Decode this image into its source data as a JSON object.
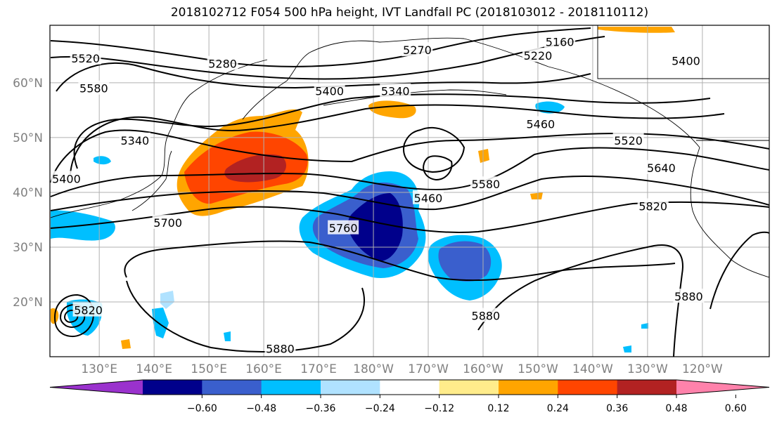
{
  "title": "2018102712 F054 500 hPa height, IVT Landfall PC (2018103012 - 2018110112)",
  "map": {
    "lon_ticks": [
      {
        "lon": 130,
        "label": "130°E"
      },
      {
        "lon": 140,
        "label": "140°E"
      },
      {
        "lon": 150,
        "label": "150°E"
      },
      {
        "lon": 160,
        "label": "160°E"
      },
      {
        "lon": 170,
        "label": "170°E"
      },
      {
        "lon": 180,
        "label": "180°W"
      },
      {
        "lon": 190,
        "label": "170°W"
      },
      {
        "lon": 200,
        "label": "160°W"
      },
      {
        "lon": 210,
        "label": "150°W"
      },
      {
        "lon": 220,
        "label": "140°W"
      },
      {
        "lon": 230,
        "label": "130°W"
      },
      {
        "lon": 240,
        "label": "120°W"
      }
    ],
    "lat_ticks": [
      {
        "lat": 20,
        "label": "20°N"
      },
      {
        "lat": 30,
        "label": "30°N"
      },
      {
        "lat": 40,
        "label": "40°N"
      },
      {
        "lat": 50,
        "label": "50°N"
      },
      {
        "lat": 60,
        "label": "60°N"
      }
    ],
    "contour_labels": [
      {
        "text": "5520",
        "lon": 127.5,
        "lat": 64.5
      },
      {
        "text": "5580",
        "lon": 129,
        "lat": 59
      },
      {
        "text": "5340",
        "lon": 136.5,
        "lat": 49.5
      },
      {
        "text": "5400",
        "lon": 124,
        "lat": 42.5
      },
      {
        "text": "5280",
        "lon": 152.5,
        "lat": 63.5
      },
      {
        "text": "5400",
        "lon": 172,
        "lat": 58.5
      },
      {
        "text": "5340",
        "lon": 184,
        "lat": 58.5
      },
      {
        "text": "5270",
        "lon": 188,
        "lat": 66
      },
      {
        "text": "5160",
        "lon": 214,
        "lat": 67.5
      },
      {
        "text": "5220",
        "lon": 210,
        "lat": 65
      },
      {
        "text": "5400",
        "lon": 237,
        "lat": 64
      },
      {
        "text": "5460",
        "lon": 210.5,
        "lat": 52.5
      },
      {
        "text": "5520",
        "lon": 226.5,
        "lat": 49.5
      },
      {
        "text": "5640",
        "lon": 232.5,
        "lat": 44.5
      },
      {
        "text": "5820",
        "lon": 231,
        "lat": 37.5
      },
      {
        "text": "5460",
        "lon": 190,
        "lat": 39
      },
      {
        "text": "5580",
        "lon": 200.5,
        "lat": 41.5
      },
      {
        "text": "5760",
        "lon": 174.5,
        "lat": 33.5
      },
      {
        "text": "5700",
        "lon": 142.5,
        "lat": 34.5
      },
      {
        "text": "5820",
        "lon": 128,
        "lat": 18.5
      },
      {
        "text": "5880",
        "lon": 163,
        "lat": 11.5
      },
      {
        "text": "5880",
        "lon": 200.5,
        "lat": 17.5
      },
      {
        "text": "5880",
        "lon": 237.5,
        "lat": 21
      }
    ]
  },
  "colorbar": {
    "colors": [
      "#9a32cd",
      "#00008b",
      "#3a5fcd",
      "#00bfff",
      "#b0e2ff",
      "#ffffff",
      "#ffec8b",
      "#ffa500",
      "#ff4500",
      "#b22222",
      "#ff82ab"
    ],
    "tick_labels": [
      "−0.60",
      "−0.48",
      "−0.36",
      "−0.24",
      "−0.12",
      "0.12",
      "0.24",
      "0.36",
      "0.48",
      "0.60"
    ]
  }
}
